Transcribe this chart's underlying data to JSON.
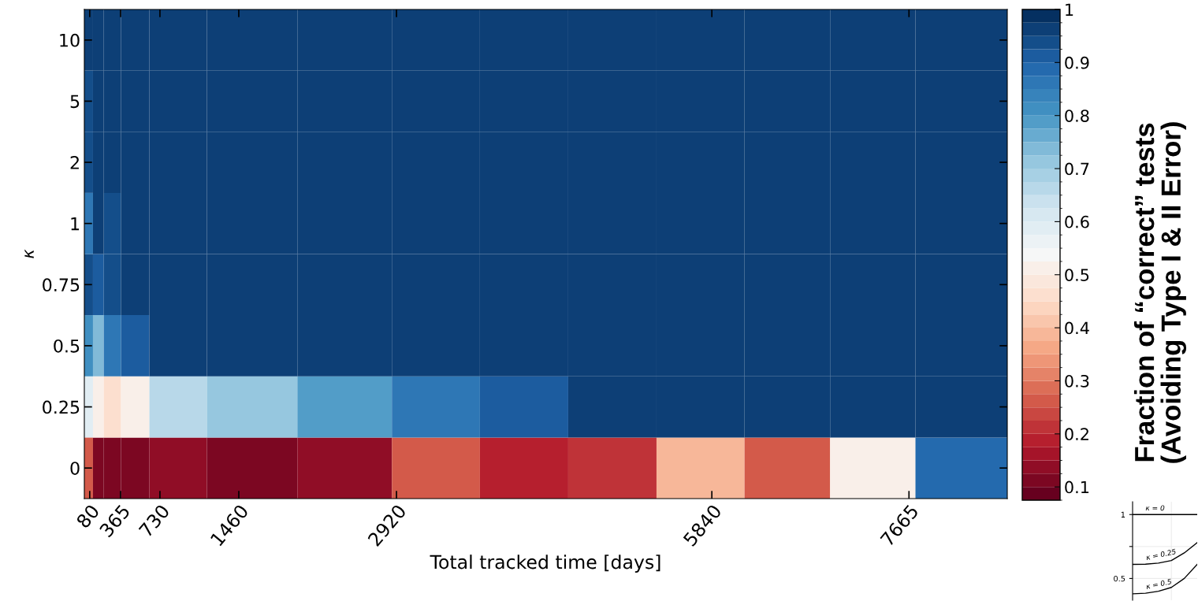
{
  "chart_data": [
    {
      "type": "heatmap",
      "xlabel": "Total tracked time [days]",
      "ylabel": "κ",
      "clabel": "Fraction of “correct” tests\n(Avoiding Type I & II Error)",
      "x": [
        70,
        150,
        270,
        470,
        795,
        1535,
        2470,
        3285,
        4100,
        4920,
        5735,
        6550,
        7320,
        8130
      ],
      "xlim": [
        30,
        8575
      ],
      "xticks": [
        80,
        365,
        730,
        1460,
        2920,
        5840,
        7665
      ],
      "y_categories": [
        "10",
        "5",
        "2",
        "1",
        "0.75",
        "0.5",
        "0.25",
        "0"
      ],
      "cells": [
        [
          0.97,
          0.97,
          0.97,
          0.97,
          0.97,
          0.97,
          0.97,
          0.97,
          0.97,
          0.97,
          0.97,
          0.97,
          0.97,
          0.97
        ],
        [
          0.93,
          0.97,
          0.97,
          0.97,
          0.97,
          0.97,
          0.97,
          0.97,
          0.97,
          0.97,
          0.97,
          0.97,
          0.97,
          0.97
        ],
        [
          0.93,
          0.97,
          0.97,
          0.97,
          0.97,
          0.97,
          0.97,
          0.97,
          0.97,
          0.97,
          0.97,
          0.97,
          0.97,
          0.97
        ],
        [
          0.85,
          0.97,
          0.93,
          0.97,
          0.97,
          0.97,
          0.97,
          0.97,
          0.97,
          0.97,
          0.97,
          0.97,
          0.97,
          0.97
        ],
        [
          0.93,
          0.91,
          0.93,
          0.97,
          0.97,
          0.97,
          0.97,
          0.97,
          0.97,
          0.97,
          0.97,
          0.97,
          0.97,
          0.97
        ],
        [
          0.8,
          0.74,
          0.85,
          0.9,
          0.97,
          0.97,
          0.97,
          0.97,
          0.97,
          0.97,
          0.97,
          0.97,
          0.97,
          0.97
        ],
        [
          0.58,
          0.5,
          0.46,
          0.52,
          0.66,
          0.7,
          0.78,
          0.85,
          0.9,
          0.97,
          0.97,
          0.97,
          0.97,
          0.97
        ],
        [
          0.27,
          0.1,
          0.1,
          0.1,
          0.13,
          0.1,
          0.13,
          0.27,
          0.18,
          0.21,
          0.38,
          0.27,
          0.52,
          0.88
        ]
      ],
      "clim": [
        0.075,
        1
      ],
      "cticks": [
        0.1,
        0.2,
        0.3,
        0.4,
        0.5,
        0.6,
        0.7,
        0.8,
        0.9,
        1
      ]
    },
    {
      "type": "line",
      "categories": [
        null,
        null,
        null,
        null,
        null,
        null
      ],
      "tick_labels": "y",
      "grid": true,
      "ylim": [
        0.33,
        1.1
      ],
      "yticks": [
        0.5,
        {
          "value": 0.75,
          "label": null
        },
        1
      ],
      "series": [
        {
          "name": "κ = 0",
          "color": "#000000",
          "values": [
            1,
            1,
            1,
            1,
            1,
            1
          ]
        },
        {
          "name": "κ = 0.25",
          "color": "#000000",
          "values": [
            0.61,
            0.612,
            0.62,
            0.64,
            0.7,
            0.78
          ]
        },
        {
          "name": "κ = 0.5",
          "color": "#000000",
          "values": [
            0.38,
            0.385,
            0.4,
            0.43,
            0.5,
            0.61
          ]
        }
      ]
    }
  ]
}
